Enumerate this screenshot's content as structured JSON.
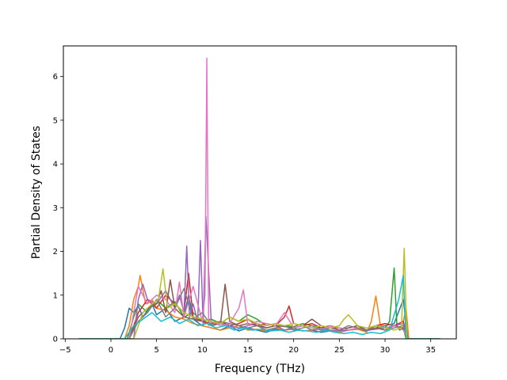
{
  "chart_data": {
    "type": "line",
    "title": "",
    "xlabel": "Frequency (THz)",
    "ylabel": "Partial Density of States",
    "xlim": [
      -5.2,
      37.8
    ],
    "ylim": [
      0,
      6.7
    ],
    "xticks": [
      -5,
      0,
      5,
      10,
      15,
      20,
      25,
      30,
      35
    ],
    "yticks": [
      0,
      1,
      2,
      3,
      4,
      5,
      6
    ],
    "grid": false,
    "legend": "none",
    "colors": [
      "#1f77b4",
      "#ff7f0e",
      "#2ca02c",
      "#d62728",
      "#9467bd",
      "#8c564b",
      "#e377c2",
      "#7f7f7f",
      "#bcbd22",
      "#17becf"
    ],
    "series": [
      {
        "color": "#1f77b4",
        "x": [
          -3.5,
          1.0,
          1.5,
          2.0,
          2.5,
          3.0,
          3.5,
          4.0,
          4.5,
          5.0,
          6.0,
          7.0,
          8.0,
          8.5,
          9.0,
          10.0,
          11.0,
          12.0,
          13.0,
          14.0,
          15.0,
          16.0,
          17.0,
          18.0,
          19.0,
          20.0,
          21.0,
          22.0,
          23.0,
          24.0,
          25.0,
          26.0,
          27.0,
          28.0,
          29.0,
          30.0,
          31.0,
          32.0,
          32.5,
          36.0
        ],
        "y": [
          0,
          0,
          0.25,
          0.7,
          0.6,
          0.75,
          0.5,
          0.65,
          0.8,
          0.55,
          0.7,
          0.4,
          0.5,
          1.0,
          0.45,
          0.3,
          0.25,
          0.2,
          0.3,
          0.18,
          0.25,
          0.2,
          0.15,
          0.22,
          0.2,
          0.25,
          0.18,
          0.2,
          0.15,
          0.18,
          0.15,
          0.2,
          0.22,
          0.18,
          0.25,
          0.3,
          0.35,
          0.9,
          0,
          0
        ]
      },
      {
        "color": "#ff7f0e",
        "x": [
          -3.5,
          1.5,
          2.0,
          2.5,
          3.0,
          3.2,
          3.8,
          4.5,
          5.0,
          6.0,
          7.0,
          8.0,
          9.0,
          10.0,
          11.0,
          12.0,
          13.0,
          14.0,
          15.0,
          16.0,
          17.0,
          18.0,
          19.0,
          20.0,
          21.0,
          22.0,
          23.0,
          24.0,
          25.0,
          26.0,
          27.0,
          28.0,
          28.5,
          29.0,
          29.5,
          30.0,
          31.0,
          32.0,
          32.3,
          32.6,
          36.0
        ],
        "y": [
          0,
          0,
          0.3,
          0.9,
          1.2,
          1.45,
          0.8,
          0.9,
          0.7,
          0.65,
          0.5,
          0.45,
          0.35,
          0.3,
          0.25,
          0.2,
          0.25,
          0.3,
          0.2,
          0.22,
          0.18,
          0.25,
          0.2,
          0.22,
          0.18,
          0.2,
          0.22,
          0.18,
          0.15,
          0.2,
          0.22,
          0.15,
          0.4,
          0.98,
          0.3,
          0.35,
          0.3,
          0.4,
          0.7,
          0,
          0
        ]
      },
      {
        "color": "#2ca02c",
        "x": [
          -3.5,
          1.8,
          2.5,
          3.0,
          4.0,
          5.0,
          6.0,
          7.0,
          8.0,
          9.0,
          10.0,
          11.0,
          12.0,
          13.0,
          14.0,
          15.0,
          16.0,
          17.0,
          18.0,
          19.0,
          20.0,
          21.0,
          22.0,
          23.0,
          24.0,
          25.0,
          26.0,
          27.0,
          28.0,
          29.0,
          30.0,
          30.5,
          31.0,
          31.3,
          31.6,
          32.0,
          32.3,
          36.0
        ],
        "y": [
          0,
          0,
          0.5,
          0.8,
          0.6,
          0.9,
          0.7,
          0.85,
          0.5,
          0.6,
          0.4,
          0.45,
          0.35,
          0.5,
          0.4,
          0.55,
          0.45,
          0.3,
          0.35,
          0.3,
          0.28,
          0.35,
          0.3,
          0.25,
          0.3,
          0.25,
          0.2,
          0.25,
          0.2,
          0.3,
          0.25,
          0.4,
          1.62,
          0.3,
          0.2,
          0.25,
          0,
          0
        ]
      },
      {
        "color": "#d62728",
        "x": [
          -3.5,
          2.0,
          3.0,
          4.0,
          5.0,
          6.0,
          7.0,
          8.0,
          8.5,
          9.0,
          10.0,
          11.0,
          12.0,
          13.0,
          14.0,
          15.0,
          16.0,
          17.0,
          18.0,
          19.0,
          19.5,
          20.0,
          21.0,
          22.0,
          23.0,
          24.0,
          25.0,
          26.0,
          27.0,
          28.0,
          29.0,
          30.0,
          31.0,
          32.0,
          32.5,
          36.0
        ],
        "y": [
          0,
          0,
          0.6,
          0.9,
          0.7,
          1.0,
          0.8,
          0.6,
          1.5,
          0.5,
          0.4,
          0.35,
          0.4,
          0.3,
          0.35,
          0.45,
          0.3,
          0.35,
          0.3,
          0.5,
          0.75,
          0.35,
          0.3,
          0.35,
          0.25,
          0.3,
          0.2,
          0.25,
          0.3,
          0.2,
          0.3,
          0.35,
          0.3,
          0.4,
          0,
          0
        ]
      },
      {
        "color": "#9467bd",
        "x": [
          -3.5,
          2.5,
          3.0,
          3.5,
          4.0,
          5.0,
          6.0,
          7.0,
          7.5,
          8.0,
          8.3,
          8.6,
          9.0,
          9.5,
          9.8,
          10.1,
          10.4,
          11.0,
          11.5,
          12.0,
          13.0,
          14.0,
          15.0,
          16.0,
          17.0,
          18.0,
          19.0,
          20.0,
          21.0,
          22.0,
          23.0,
          24.0,
          25.0,
          26.0,
          27.0,
          28.0,
          29.0,
          30.0,
          31.0,
          32.0,
          32.5,
          36.0
        ],
        "y": [
          0,
          0,
          0.9,
          1.25,
          0.9,
          0.8,
          1.1,
          0.7,
          1.0,
          0.6,
          2.12,
          0.5,
          0.8,
          0.4,
          2.25,
          0.3,
          2.8,
          0.3,
          0.4,
          0.35,
          0.3,
          0.25,
          0.3,
          0.35,
          0.25,
          0.3,
          0.2,
          0.25,
          0.3,
          0.2,
          0.25,
          0.2,
          0.18,
          0.2,
          0.25,
          0.2,
          0.22,
          0.25,
          0.3,
          0.35,
          0,
          0
        ]
      },
      {
        "color": "#8c564b",
        "x": [
          -3.5,
          2.0,
          3.0,
          4.0,
          5.0,
          5.5,
          6.0,
          6.5,
          7.0,
          8.0,
          9.0,
          10.0,
          11.0,
          12.0,
          12.5,
          13.0,
          14.0,
          15.0,
          16.0,
          17.0,
          18.0,
          19.0,
          20.0,
          21.0,
          22.0,
          23.0,
          24.0,
          25.0,
          26.0,
          27.0,
          28.0,
          29.0,
          30.0,
          31.0,
          32.0,
          32.5,
          36.0
        ],
        "y": [
          0,
          0,
          0.5,
          0.7,
          0.8,
          1.1,
          0.6,
          1.35,
          0.7,
          0.5,
          0.45,
          0.4,
          0.3,
          0.35,
          1.25,
          0.4,
          0.3,
          0.35,
          0.3,
          0.25,
          0.3,
          0.28,
          0.25,
          0.3,
          0.45,
          0.3,
          0.25,
          0.2,
          0.25,
          0.3,
          0.2,
          0.25,
          0.2,
          0.3,
          0.25,
          0,
          0
        ]
      },
      {
        "color": "#e377c2",
        "x": [
          -3.5,
          2.0,
          3.0,
          4.0,
          5.0,
          6.0,
          7.0,
          7.5,
          8.0,
          9.0,
          10.0,
          10.3,
          10.5,
          10.7,
          11.0,
          12.0,
          13.0,
          14.0,
          14.5,
          15.0,
          16.0,
          17.0,
          18.0,
          19.0,
          20.0,
          21.0,
          22.0,
          23.0,
          24.0,
          25.0,
          26.0,
          27.0,
          28.0,
          29.0,
          30.0,
          31.0,
          32.0,
          32.5,
          36.0
        ],
        "y": [
          0,
          0,
          1.2,
          0.8,
          1.0,
          0.9,
          0.6,
          1.3,
          0.5,
          1.2,
          0.4,
          1.0,
          6.42,
          0.3,
          0.4,
          0.3,
          0.35,
          0.7,
          1.12,
          0.3,
          0.4,
          0.35,
          0.3,
          0.6,
          0.25,
          0.3,
          0.25,
          0.2,
          0.3,
          0.25,
          0.2,
          0.25,
          0.2,
          0.3,
          0.25,
          0.3,
          0.2,
          0,
          0
        ]
      },
      {
        "color": "#7f7f7f",
        "x": [
          -3.5,
          2.0,
          3.0,
          4.0,
          5.0,
          6.0,
          7.0,
          8.0,
          9.0,
          10.0,
          11.0,
          12.0,
          13.0,
          14.0,
          15.0,
          16.0,
          17.0,
          18.0,
          19.0,
          20.0,
          21.0,
          22.0,
          23.0,
          24.0,
          25.0,
          26.0,
          27.0,
          28.0,
          29.0,
          30.0,
          31.0,
          32.0,
          32.5,
          36.0
        ],
        "y": [
          0,
          0,
          0.4,
          0.6,
          0.9,
          0.5,
          0.7,
          1.15,
          0.45,
          0.6,
          0.3,
          0.4,
          0.35,
          0.3,
          0.25,
          0.3,
          0.2,
          0.25,
          0.3,
          0.2,
          0.25,
          0.3,
          0.2,
          0.25,
          0.2,
          0.3,
          0.25,
          0.2,
          0.3,
          0.2,
          0.25,
          0.3,
          0,
          0
        ]
      },
      {
        "color": "#bcbd22",
        "x": [
          -3.5,
          2.5,
          3.5,
          4.5,
          5.2,
          5.7,
          6.2,
          7.0,
          8.0,
          9.0,
          10.0,
          11.0,
          12.0,
          13.0,
          14.0,
          15.0,
          16.0,
          17.0,
          18.0,
          19.0,
          20.0,
          21.0,
          22.0,
          23.0,
          24.0,
          25.0,
          25.5,
          26.0,
          27.0,
          28.0,
          29.0,
          30.0,
          31.0,
          31.8,
          32.1,
          32.4,
          36.0
        ],
        "y": [
          0,
          0,
          0.6,
          0.8,
          0.9,
          1.6,
          0.7,
          0.8,
          0.6,
          0.5,
          0.45,
          0.4,
          0.35,
          0.5,
          0.4,
          0.45,
          0.35,
          0.3,
          0.35,
          0.3,
          0.35,
          0.3,
          0.25,
          0.3,
          0.25,
          0.3,
          0.45,
          0.55,
          0.3,
          0.25,
          0.3,
          0.25,
          0.2,
          0.25,
          2.07,
          0,
          0
        ]
      },
      {
        "color": "#17becf",
        "x": [
          -3.5,
          1.5,
          2.5,
          3.5,
          4.5,
          5.5,
          6.5,
          7.5,
          8.5,
          9.5,
          10.5,
          11.5,
          12.5,
          13.5,
          14.5,
          15.5,
          16.5,
          17.5,
          18.5,
          19.5,
          20.5,
          21.5,
          22.5,
          23.5,
          24.5,
          25.5,
          26.5,
          27.5,
          28.5,
          29.5,
          30.5,
          31.5,
          32.0,
          32.3,
          36.0
        ],
        "y": [
          0,
          0,
          0.3,
          0.45,
          0.6,
          0.4,
          0.5,
          0.35,
          0.45,
          0.3,
          0.35,
          0.25,
          0.3,
          0.2,
          0.25,
          0.2,
          0.22,
          0.18,
          0.2,
          0.15,
          0.2,
          0.18,
          0.15,
          0.2,
          0.15,
          0.12,
          0.15,
          0.1,
          0.15,
          0.12,
          0.2,
          0.9,
          1.45,
          0,
          0
        ]
      }
    ]
  }
}
